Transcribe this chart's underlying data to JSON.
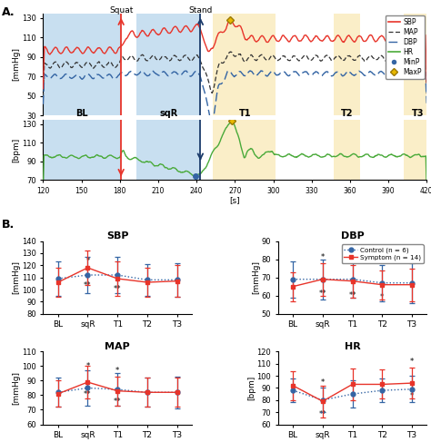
{
  "panel_A": {
    "xlim": [
      120,
      420
    ],
    "xticks": [
      120,
      150,
      180,
      210,
      240,
      270,
      300,
      330,
      360,
      390,
      420
    ],
    "squat_x": 181,
    "stand_x": 243,
    "bg_BL": [
      120,
      181
    ],
    "bg_sqR": [
      193,
      243
    ],
    "bg_T1": [
      253,
      302
    ],
    "bg_T2": [
      347,
      368
    ],
    "bg_T3": [
      402,
      422
    ],
    "bg_blue": "#c8dff0",
    "bg_yellow": "#faeec8",
    "upper_ylim": [
      30,
      135
    ],
    "upper_yticks": [
      30,
      50,
      70,
      90,
      110,
      130
    ],
    "lower_ylim": [
      70,
      135
    ],
    "lower_yticks": [
      70,
      90,
      110,
      130
    ],
    "upper_ylabel": "[mmHg]",
    "lower_ylabel": "[bpm]",
    "phase_labels": {
      "BL": 150,
      "sqR": 218,
      "T1": 278,
      "T2": 358,
      "T3": 413
    },
    "squat_label": "Squat",
    "stand_label": "Stand"
  },
  "panel_B": {
    "categories": [
      "BL",
      "sqR",
      "T1",
      "T2",
      "T3"
    ],
    "SBP": {
      "title": "SBP",
      "ylabel": "[mmHg]",
      "ylim": [
        80,
        140
      ],
      "yticks": [
        80,
        90,
        100,
        110,
        120,
        130,
        140
      ],
      "control_mean": [
        109,
        112,
        112,
        108,
        108
      ],
      "control_err": [
        14,
        15,
        15,
        13,
        14
      ],
      "symptom_mean": [
        106,
        118,
        109,
        106,
        107
      ],
      "symptom_err": [
        12,
        14,
        14,
        12,
        13
      ],
      "star_positions": [
        {
          "x": 1,
          "y_ctrl": null,
          "y_sym": 100,
          "text": "**"
        },
        {
          "x": 1,
          "y_ctrl": null,
          "y_sym": 120,
          "text": "*"
        },
        {
          "x": 2,
          "y_ctrl": null,
          "y_sym": 97,
          "text": "**"
        }
      ]
    },
    "DBP": {
      "title": "DBP",
      "ylabel": "[mmHg]",
      "ylim": [
        50,
        90
      ],
      "yticks": [
        50,
        60,
        70,
        80,
        90
      ],
      "control_mean": [
        69,
        69,
        69,
        67,
        67
      ],
      "control_err": [
        10,
        11,
        10,
        10,
        11
      ],
      "symptom_mean": [
        65,
        69,
        68,
        66,
        66
      ],
      "symptom_err": [
        8,
        9,
        9,
        8,
        9
      ],
      "star_positions": [
        {
          "x": 1,
          "y_ctrl": null,
          "y_sym": 59,
          "text": "**"
        },
        {
          "x": 1,
          "y_ctrl": null,
          "y_sym": 79,
          "text": "*"
        },
        {
          "x": 2,
          "y_ctrl": null,
          "y_sym": 58,
          "text": "**"
        },
        {
          "x": 2,
          "y_ctrl": null,
          "y_sym": 78,
          "text": "*"
        },
        {
          "x": 3,
          "y_ctrl": null,
          "y_sym": 57,
          "text": "*"
        }
      ]
    },
    "MAP": {
      "title": "MAP",
      "ylabel": "[mmHg]",
      "ylim": [
        60,
        110
      ],
      "yticks": [
        60,
        70,
        80,
        90,
        100,
        110
      ],
      "control_mean": [
        82,
        85,
        84,
        82,
        82
      ],
      "control_err": [
        10,
        12,
        11,
        10,
        11
      ],
      "symptom_mean": [
        81,
        89,
        83,
        82,
        82
      ],
      "symptom_err": [
        9,
        11,
        10,
        10,
        10
      ],
      "star_positions": [
        {
          "x": 1,
          "y_ctrl": null,
          "y_sym": 78,
          "text": "**"
        },
        {
          "x": 1,
          "y_ctrl": null,
          "y_sym": 97,
          "text": "*"
        },
        {
          "x": 2,
          "y_ctrl": null,
          "y_sym": 73,
          "text": "**"
        },
        {
          "x": 2,
          "y_ctrl": null,
          "y_sym": 94,
          "text": "*"
        }
      ]
    },
    "HR": {
      "title": "HR",
      "ylabel": "[bpm]",
      "ylim": [
        60,
        120
      ],
      "yticks": [
        60,
        70,
        80,
        90,
        100,
        110,
        120
      ],
      "control_mean": [
        88,
        80,
        85,
        88,
        89
      ],
      "control_err": [
        10,
        10,
        11,
        10,
        11
      ],
      "symptom_mean": [
        92,
        79,
        93,
        93,
        94
      ],
      "symptom_err": [
        12,
        13,
        13,
        12,
        13
      ],
      "star_positions": [
        {
          "x": 1,
          "y_ctrl": null,
          "y_sym": 65,
          "text": "**"
        },
        {
          "x": 1,
          "y_ctrl": null,
          "y_sym": 91,
          "text": "*"
        },
        {
          "x": 2,
          "y_ctrl": null,
          "y_sym": 80,
          "text": "*"
        },
        {
          "x": 4,
          "y_ctrl": null,
          "y_sym": 80,
          "text": "*"
        },
        {
          "x": 4,
          "y_ctrl": null,
          "y_sym": 108,
          "text": "*"
        }
      ]
    }
  },
  "legend_B": {
    "control_label": "Control (n = 6)",
    "symptom_label": "Symptom (n = 14)"
  },
  "colors": {
    "SBP_line": "#e8342a",
    "MAP_line": "#333333",
    "DBP_line": "#3465a4",
    "HR_line": "#4aaa3a",
    "control": "#3465a4",
    "symptom": "#e8342a",
    "bg_blue": "#c8dff0",
    "bg_yellow": "#faeec8",
    "MinP": "#3465a4",
    "MaxP": "#e8b800"
  }
}
